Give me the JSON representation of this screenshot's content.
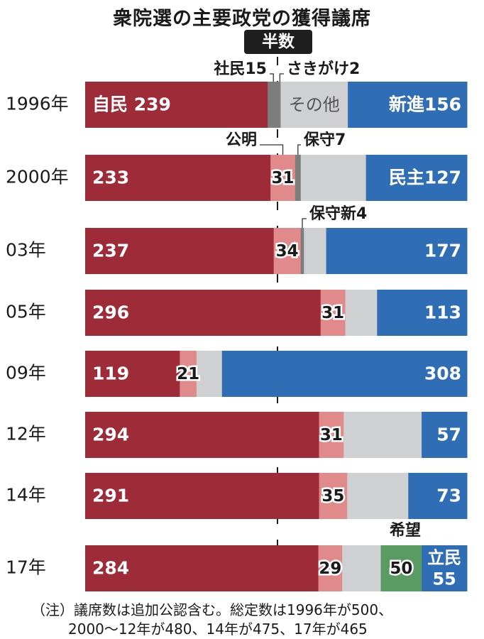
{
  "title": "衆院選の主要政党の獲得議席",
  "half_label": "半数",
  "note_lines": [
    "（注）議席数は追加公認含む。総定数は1996年が500、",
    "2000〜12年が480、14年が475、17年が465"
  ],
  "colors": {
    "ldp": "#9e2b38",
    "komeito": "#e08a8c",
    "others": "#cfd0d2",
    "small": "#7d7d7d",
    "opposition": "#2f6db5",
    "kibo": "#5a9a63"
  },
  "chart_data": {
    "type": "bar",
    "stacked": true,
    "orientation": "horizontal",
    "normalized_to_total_seats": true,
    "rows": [
      {
        "year": "1996年",
        "total": 500,
        "segments": [
          {
            "party": "自民",
            "value": 239,
            "label": "自民 239",
            "color": "ldp"
          },
          {
            "party": "社民",
            "value": 15,
            "color": "small",
            "callout": "社民15"
          },
          {
            "party": "さきがけ",
            "value": 2,
            "color": "small",
            "callout": "さきがけ2"
          },
          {
            "party": "その他",
            "value": 88,
            "label": "その他",
            "color": "others"
          },
          {
            "party": "新進",
            "value": 156,
            "label": "新進156",
            "color": "opposition"
          }
        ]
      },
      {
        "year": "2000年",
        "total": 480,
        "segments": [
          {
            "party": "自民",
            "value": 233,
            "label": "233",
            "color": "ldp"
          },
          {
            "party": "公明",
            "value": 31,
            "label": "31",
            "color": "komeito",
            "callout": "公明"
          },
          {
            "party": "保守",
            "value": 7,
            "color": "small",
            "callout": "保守7"
          },
          {
            "party": "その他",
            "value": 82,
            "color": "others"
          },
          {
            "party": "民主",
            "value": 127,
            "label": "民主127",
            "color": "opposition"
          }
        ]
      },
      {
        "year": "03年",
        "total": 480,
        "segments": [
          {
            "party": "自民",
            "value": 237,
            "label": "237",
            "color": "ldp"
          },
          {
            "party": "公明",
            "value": 34,
            "label": "34",
            "color": "komeito"
          },
          {
            "party": "保守新",
            "value": 4,
            "color": "small",
            "callout": "保守新4"
          },
          {
            "party": "その他",
            "value": 28,
            "color": "others"
          },
          {
            "party": "民主",
            "value": 177,
            "label": "177",
            "color": "opposition"
          }
        ]
      },
      {
        "year": "05年",
        "total": 480,
        "segments": [
          {
            "party": "自民",
            "value": 296,
            "label": "296",
            "color": "ldp"
          },
          {
            "party": "公明",
            "value": 31,
            "label": "31",
            "color": "komeito"
          },
          {
            "party": "その他",
            "value": 40,
            "color": "others"
          },
          {
            "party": "民主",
            "value": 113,
            "label": "113",
            "color": "opposition"
          }
        ]
      },
      {
        "year": "09年",
        "total": 480,
        "segments": [
          {
            "party": "自民",
            "value": 119,
            "label": "119",
            "color": "ldp"
          },
          {
            "party": "公明",
            "value": 21,
            "label": "21",
            "color": "komeito"
          },
          {
            "party": "その他",
            "value": 32,
            "color": "others"
          },
          {
            "party": "民主",
            "value": 308,
            "label": "308",
            "color": "opposition"
          }
        ]
      },
      {
        "year": "12年",
        "total": 480,
        "segments": [
          {
            "party": "自民",
            "value": 294,
            "label": "294",
            "color": "ldp"
          },
          {
            "party": "公明",
            "value": 31,
            "label": "31",
            "color": "komeito"
          },
          {
            "party": "その他",
            "value": 98,
            "color": "others"
          },
          {
            "party": "民主",
            "value": 57,
            "label": "57",
            "color": "opposition"
          }
        ]
      },
      {
        "year": "14年",
        "total": 475,
        "segments": [
          {
            "party": "自民",
            "value": 291,
            "label": "291",
            "color": "ldp"
          },
          {
            "party": "公明",
            "value": 35,
            "label": "35",
            "color": "komeito"
          },
          {
            "party": "その他",
            "value": 76,
            "color": "others"
          },
          {
            "party": "民主",
            "value": 73,
            "label": "73",
            "color": "opposition"
          }
        ]
      },
      {
        "year": "17年",
        "total": 465,
        "segments": [
          {
            "party": "自民",
            "value": 284,
            "label": "284",
            "color": "ldp"
          },
          {
            "party": "公明",
            "value": 29,
            "label": "29",
            "color": "komeito"
          },
          {
            "party": "その他",
            "value": 47,
            "color": "others"
          },
          {
            "party": "希望",
            "value": 50,
            "label": "50",
            "color": "kibo",
            "callout": "希望"
          },
          {
            "party": "立民",
            "value": 55,
            "label": "立民\n55",
            "color": "opposition"
          }
        ]
      }
    ]
  }
}
